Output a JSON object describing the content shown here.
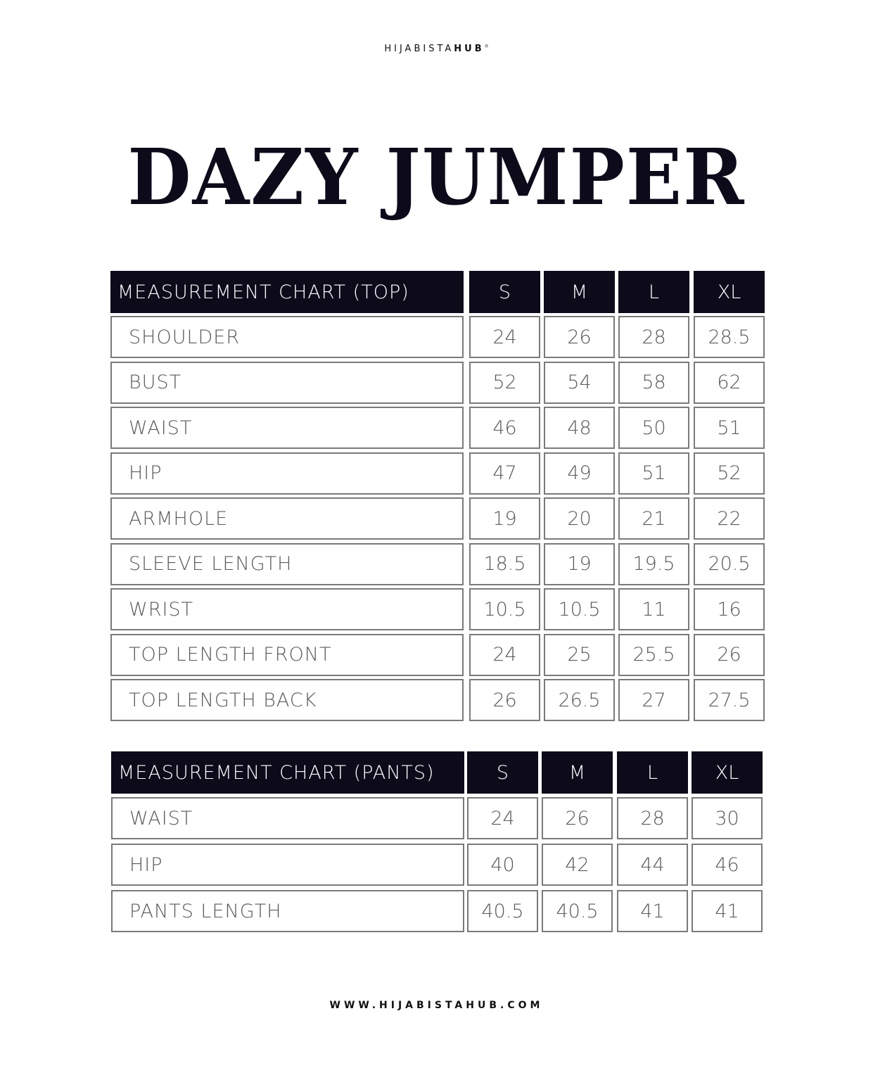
{
  "brand": {
    "name_light": "HIJABISTA",
    "name_bold": "HUB",
    "mark": "®"
  },
  "title": "DAZY JUMPER",
  "top_chart": {
    "header": "MEASUREMENT CHART (TOP)",
    "sizes": [
      "S",
      "M",
      "L",
      "XL"
    ],
    "rows": [
      {
        "label": "SHOULDER",
        "values": [
          "24",
          "26",
          "28",
          "28.5"
        ]
      },
      {
        "label": "BUST",
        "values": [
          "52",
          "54",
          "58",
          "62"
        ]
      },
      {
        "label": "WAIST",
        "values": [
          "46",
          "48",
          "50",
          "51"
        ]
      },
      {
        "label": "HIP",
        "values": [
          "47",
          "49",
          "51",
          "52"
        ]
      },
      {
        "label": "ARMHOLE",
        "values": [
          "19",
          "20",
          "21",
          "22"
        ]
      },
      {
        "label": "SLEEVE LENGTH",
        "values": [
          "18.5",
          "19",
          "19.5",
          "20.5"
        ]
      },
      {
        "label": "WRIST",
        "values": [
          "10.5",
          "10.5",
          "11",
          "16"
        ]
      },
      {
        "label": "TOP LENGTH FRONT",
        "values": [
          "24",
          "25",
          "25.5",
          "26"
        ]
      },
      {
        "label": "TOP LENGTH BACK",
        "values": [
          "26",
          "26.5",
          "27",
          "27.5"
        ]
      }
    ]
  },
  "pants_chart": {
    "header": "MEASUREMENT CHART (PANTS)",
    "sizes": [
      "S",
      "M",
      "L",
      "XL"
    ],
    "rows": [
      {
        "label": "WAIST",
        "values": [
          "24",
          "26",
          "28",
          "30"
        ]
      },
      {
        "label": "HIP",
        "values": [
          "40",
          "42",
          "44",
          "46"
        ]
      },
      {
        "label": "PANTS LENGTH",
        "values": [
          "40.5",
          "40.5",
          "41",
          "41"
        ]
      }
    ]
  },
  "footer": "WWW.HIJABISTAHUB.COM",
  "colors": {
    "header_bg": "#0d0b1a",
    "border": "#7a7a7a",
    "text": "#5a5a5a"
  }
}
